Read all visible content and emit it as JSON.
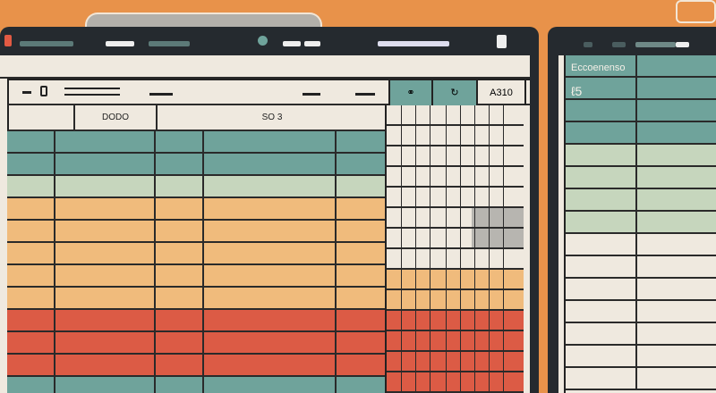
{
  "colors": {
    "background": "#e8924a",
    "frame": "#252a2f",
    "cream": "#efe9df",
    "teal": "#6fa39b",
    "green": "#c6d6bd",
    "orange": "#f0bb7c",
    "red": "#dc5b45",
    "gray": "#b7b5b0"
  },
  "left_window": {
    "toolbar": {
      "cell_label": "A310"
    },
    "header": {
      "col1": "DODO",
      "col2": "SO 3"
    },
    "bands": [
      {
        "color": "teal",
        "rows": 2
      },
      {
        "color": "green",
        "rows": 1
      },
      {
        "color": "orange",
        "rows": 5
      },
      {
        "color": "red",
        "rows": 3
      },
      {
        "color": "teal",
        "rows": 1
      }
    ]
  },
  "right_window": {
    "header_label": "Eccoenenso",
    "sub_label": "ℓ5",
    "bands": [
      {
        "color": "teal",
        "rows": 4
      },
      {
        "color": "green",
        "rows": 4
      },
      {
        "color": "cream",
        "rows": 7
      }
    ]
  }
}
